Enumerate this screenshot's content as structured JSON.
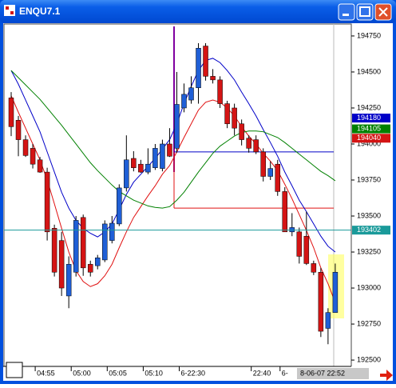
{
  "window": {
    "title": "ENQU7.1"
  },
  "chart_data": {
    "type": "candlestick",
    "categories": [
      null,
      null,
      null,
      null,
      null,
      "04:55",
      null,
      null,
      null,
      null,
      "05:00",
      null,
      null,
      null,
      null,
      "05:05",
      null,
      null,
      null,
      null,
      "05:10",
      null,
      null,
      null,
      null,
      "6-22:30",
      null,
      null,
      null,
      null,
      null,
      null,
      null,
      null,
      null,
      "22:40",
      null,
      null,
      null,
      "6-",
      null,
      null,
      null,
      null,
      null,
      "8-06-07 22:52"
    ],
    "open": [
      194320,
      194165,
      194030,
      193970,
      193890,
      193805,
      193415,
      193330,
      192945,
      193110,
      193490,
      193165,
      193155,
      193195,
      193330,
      193445,
      193695,
      193900,
      193860,
      193805,
      193835,
      193830,
      194000,
      193970,
      194250,
      194305,
      194390,
      194680,
      194470,
      194445,
      194280,
      194250,
      194140,
      194040,
      194030,
      193945,
      193775,
      193860,
      193670,
      193390,
      193390,
      193360,
      193170,
      193110,
      192720,
      192830
    ],
    "high": [
      194360,
      194195,
      194060,
      194000,
      193910,
      193835,
      193440,
      193390,
      193220,
      193500,
      193510,
      193190,
      193230,
      193470,
      193500,
      193720,
      194060,
      193950,
      193890,
      193970,
      194000,
      194030,
      194110,
      194500,
      194420,
      194470,
      194700,
      194700,
      194520,
      194470,
      194300,
      194280,
      194170,
      194060,
      194060,
      193970,
      193880,
      193890,
      193700,
      193520,
      193420,
      193530,
      193190,
      193140,
      192860,
      193170
    ],
    "low": [
      194055,
      193915,
      193910,
      193830,
      193800,
      193330,
      193080,
      192945,
      192860,
      193080,
      193085,
      193080,
      193130,
      193180,
      193310,
      193430,
      193670,
      193810,
      193800,
      193790,
      193820,
      193810,
      193910,
      193940,
      194220,
      194280,
      194280,
      194440,
      194420,
      194250,
      194110,
      194060,
      193990,
      193940,
      193930,
      193740,
      193750,
      193640,
      193390,
      193360,
      193170,
      193160,
      193090,
      192660,
      192610,
      192830
    ],
    "close": [
      194120,
      194030,
      193920,
      193860,
      193805,
      193390,
      193110,
      193000,
      193165,
      193470,
      193140,
      193110,
      193210,
      193445,
      193450,
      193695,
      193890,
      193835,
      193805,
      193860,
      193970,
      194000,
      193915,
      194275,
      194345,
      194390,
      194665,
      194470,
      194445,
      194280,
      194140,
      194110,
      194030,
      193970,
      193945,
      193775,
      193830,
      193670,
      193390,
      193420,
      193220,
      193170,
      193110,
      192700,
      192830,
      193110
    ],
    "up_color": "#1f5fd6",
    "down_color": "#d41414",
    "lines": [
      {
        "color": "#0000c8",
        "values": [
          194510,
          194415,
          194305,
          194195,
          194085,
          193945,
          193805,
          193665,
          193555,
          193470,
          193415,
          193380,
          193355,
          193390,
          193445,
          193545,
          193650,
          193735,
          193790,
          193845,
          193900,
          193965,
          194030,
          194140,
          194280,
          194400,
          194510,
          194580,
          194595,
          194565,
          194510,
          194445,
          194360,
          194280,
          194195,
          194100,
          194010,
          193915,
          193805,
          193710,
          193610,
          193530,
          193445,
          193360,
          193290,
          193250
        ]
      },
      {
        "color": "#e01010",
        "values": [
          194335,
          194220,
          194110,
          194000,
          193890,
          193750,
          193585,
          193415,
          193250,
          193120,
          193045,
          193010,
          193030,
          193085,
          193165,
          193280,
          193390,
          193490,
          193565,
          193640,
          193710,
          193790,
          193850,
          193945,
          194045,
          194140,
          194235,
          194290,
          194305,
          194290,
          194250,
          194195,
          194120,
          194055,
          194000,
          193935,
          193880,
          193815,
          193720,
          193620,
          193510,
          193400,
          193280,
          193140,
          193030,
          192900
        ]
      },
      {
        "color": "#008000",
        "values": [
          194510,
          194460,
          194410,
          194360,
          194310,
          194250,
          194190,
          194130,
          194065,
          194000,
          193935,
          193870,
          193815,
          193765,
          193715,
          193670,
          193640,
          193610,
          193590,
          193570,
          193560,
          193555,
          193565,
          193610,
          193665,
          193735,
          193805,
          193870,
          193935,
          193985,
          194020,
          194055,
          194080,
          194090,
          194090,
          194085,
          194065,
          194045,
          194010,
          193970,
          193930,
          193890,
          193850,
          193810,
          193780,
          193745
        ]
      }
    ],
    "levels": [
      {
        "value": 193945,
        "color": "#0000c8"
      },
      {
        "value": 193555,
        "color": "#e01010"
      }
    ],
    "price_tags": [
      {
        "value": 194180,
        "color": "#0000c8"
      },
      {
        "value": 194105,
        "color": "#008000"
      },
      {
        "value": 194040,
        "color": "#d41414"
      },
      {
        "value": 193402,
        "color": "#1a9a9a"
      }
    ],
    "ylim": [
      192456,
      194833
    ],
    "yticks": [
      192500,
      192750,
      193000,
      193250,
      193500,
      193750,
      194000,
      194250,
      194500,
      194750
    ]
  }
}
